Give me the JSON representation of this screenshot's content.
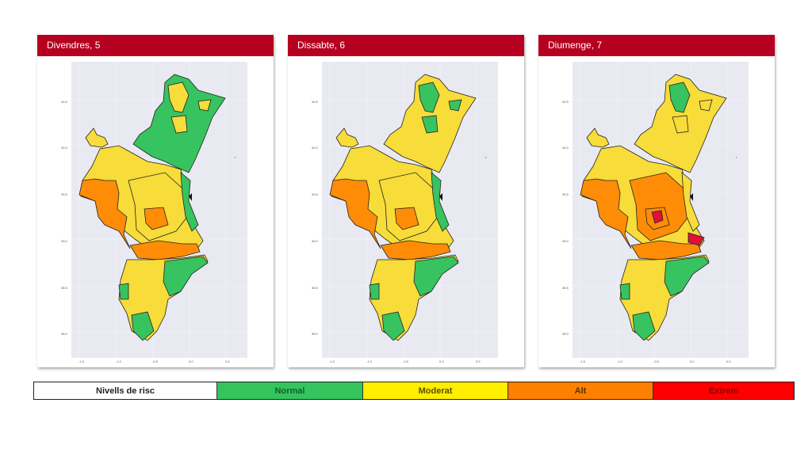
{
  "panels": [
    {
      "title": "Divendres, 5",
      "regions": {
        "north": "#37c35f",
        "north_inner": "#f7dc3a",
        "north_extra": "#f7dc3a",
        "island": "#f7dc3a",
        "west": "#f7dc3a",
        "west_big": "#ff8c06",
        "center": "#f7dc3a",
        "center_hot": "#ff8c06",
        "east_coast": "#37c35f",
        "south_band": "#ff8c06",
        "south": "#f7dc3a",
        "south_green": "#37c35f",
        "extreme": "none"
      }
    },
    {
      "title": "Dissabte, 6",
      "regions": {
        "north": "#f7dc3a",
        "north_inner": "#37c35f",
        "north_extra": "#37c35f",
        "island": "#f7dc3a",
        "west": "#f7dc3a",
        "west_big": "#ff8c06",
        "center": "#f7dc3a",
        "center_hot": "#ff8c06",
        "east_coast": "#37c35f",
        "south_band": "#ff8c06",
        "south": "#f7dc3a",
        "south_green": "#37c35f",
        "extreme": "none"
      }
    },
    {
      "title": "Diumenge, 7",
      "regions": {
        "north": "#f7dc3a",
        "north_inner": "#37c35f",
        "north_extra": "#f7dc3a",
        "island": "#f7dc3a",
        "west": "#f7dc3a",
        "west_big": "#ff8c06",
        "center": "#ff8c06",
        "center_hot": "#ff8c06",
        "east_coast": "#f7dc3a",
        "south_band": "#ff8c06",
        "south": "#f7dc3a",
        "south_green": "#37c35f",
        "extreme": "#e0103a"
      }
    }
  ],
  "axes": {
    "yticks": [
      "40.5",
      "40.0",
      "39.5",
      "39.0",
      "38.5",
      "38.0"
    ],
    "xticks": [
      "-1.5",
      "-1.0",
      "-0.5",
      "0.0",
      "0.5"
    ]
  },
  "legend": {
    "title": "Nivells de risc",
    "levels": [
      {
        "label": "Normal",
        "color": "#33c45e",
        "text_color": "#1b5c2a"
      },
      {
        "label": "Moderat",
        "color": "#ffee00",
        "text_color": "#5a4e00"
      },
      {
        "label": "Alt",
        "color": "#ff8000",
        "text_color": "#5a3000"
      },
      {
        "label": "Extrem",
        "color": "#ff0000",
        "text_color": "#8a0000"
      }
    ]
  }
}
